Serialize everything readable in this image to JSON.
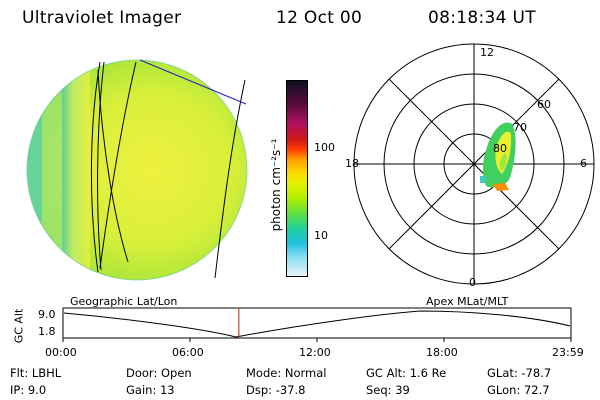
{
  "header": {
    "instrument": "Ultraviolet Imager",
    "date": "12 Oct 00",
    "time": "08:18:34 UT"
  },
  "colorbar": {
    "unit_label": "photon cm⁻²s⁻¹",
    "ticks": [
      "100",
      "10"
    ],
    "colors": [
      "#111122",
      "#5a0a3a",
      "#b01060",
      "#d01818",
      "#ff3a00",
      "#ff9a00",
      "#ffd200",
      "#e8f000",
      "#b0f000",
      "#60e040",
      "#20d0a0",
      "#20c0e0",
      "#90e0f0",
      "#e8f4f8"
    ]
  },
  "polar": {
    "mlt_labels": {
      "top": "12",
      "left": "18",
      "right": "6",
      "bottom": "0"
    },
    "lat_labels": [
      "60",
      "70",
      "80"
    ]
  },
  "strip": {
    "y_axis_label": "GC Alt",
    "y_ticks": [
      "9.0",
      "1.8"
    ],
    "left_caption": "Geographic Lat/Lon",
    "right_caption": "Apex MLat/MLT",
    "x_ticks": [
      "00:00",
      "06:00",
      "12:00",
      "18:00",
      "23:59"
    ],
    "current_marker_fraction": 0.3462
  },
  "info": [
    [
      {
        "k": "Flt:",
        "v": "LBHL"
      },
      {
        "k": "Door:",
        "v": "Open"
      },
      {
        "k": "Mode:",
        "v": "Normal"
      },
      {
        "k": "GC Alt:",
        "v": "1.6 Re"
      },
      {
        "k": "GLat:",
        "v": "-78.7"
      }
    ],
    [
      {
        "k": "IP:",
        "v": "9.0"
      },
      {
        "k": "Gain:",
        "v": "13"
      },
      {
        "k": "Dsp:",
        "v": "-37.8"
      },
      {
        "k": "Seq:",
        "v": "39"
      },
      {
        "k": "GLon:",
        "v": "72.7"
      }
    ]
  ]
}
